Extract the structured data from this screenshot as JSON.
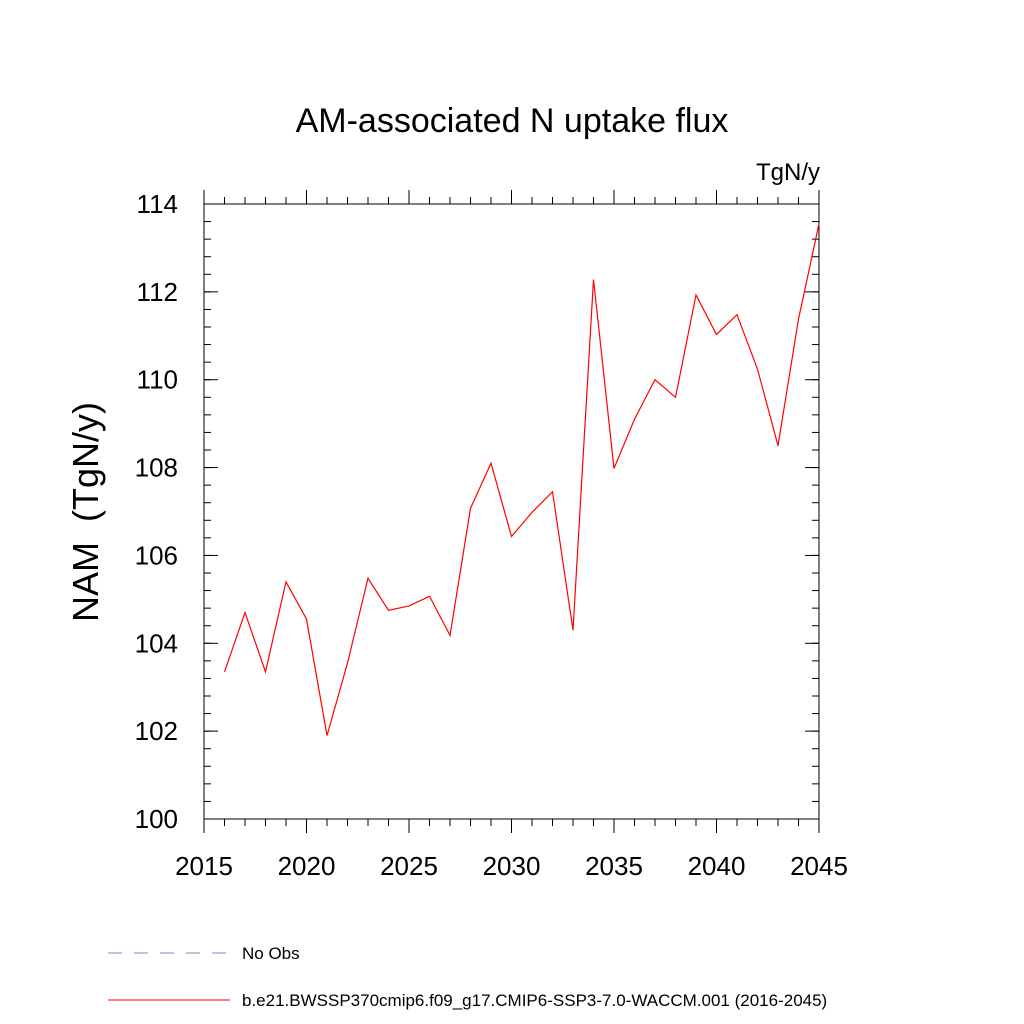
{
  "chart_data": {
    "type": "line",
    "title": "AM-associated N uptake flux",
    "units_label": "TgN/y",
    "ylabel": "NAM  (TgN/y)",
    "xlabel": "",
    "xlim": [
      2015,
      2045
    ],
    "ylim": [
      100,
      114
    ],
    "x_ticks": [
      "2015",
      "2020",
      "2025",
      "2030",
      "2035",
      "2040",
      "2045"
    ],
    "y_ticks": [
      "100",
      "102",
      "104",
      "106",
      "108",
      "110",
      "112",
      "114"
    ],
    "grid": false,
    "legend_position": "bottom-left",
    "series": [
      {
        "name": "b.e21.BWSSP370cmip6.f09_g17.CMIP6-SSP3-7.0-WACCM.001 (2016-2045)",
        "color": "#ff0000",
        "style": "solid",
        "x": [
          2016,
          2017,
          2018,
          2019,
          2020,
          2021,
          2022,
          2023,
          2024,
          2025,
          2026,
          2027,
          2028,
          2029,
          2030,
          2031,
          2032,
          2033,
          2034,
          2035,
          2036,
          2037,
          2038,
          2039,
          2040,
          2041,
          2042,
          2043,
          2044,
          2045
        ],
        "y": [
          103.35,
          104.7,
          103.35,
          105.4,
          104.55,
          101.9,
          103.55,
          105.48,
          104.75,
          104.85,
          105.07,
          104.18,
          107.07,
          108.1,
          106.43,
          106.98,
          107.45,
          104.3,
          112.28,
          107.98,
          109.1,
          110.0,
          109.6,
          111.93,
          111.03,
          111.48,
          110.24,
          108.5,
          111.38,
          113.55
        ]
      }
    ],
    "legend": [
      {
        "label": "No Obs",
        "color": "#8a82c8",
        "style": "dashed"
      },
      {
        "label": "b.e21.BWSSP370cmip6.f09_g17.CMIP6-SSP3-7.0-WACCM.001 (2016-2045)",
        "color": "#ff0000",
        "style": "solid"
      }
    ]
  }
}
